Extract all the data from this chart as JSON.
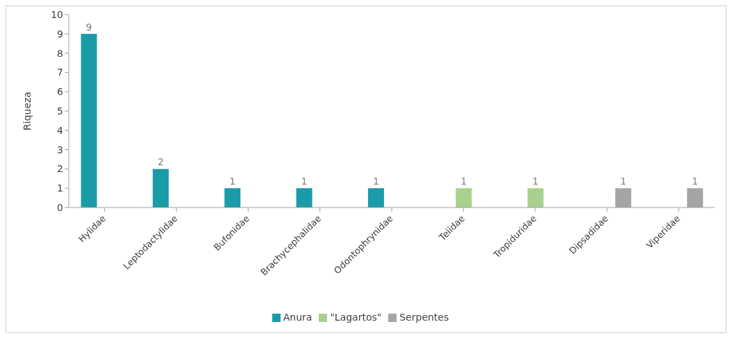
{
  "chart_data": {
    "type": "bar",
    "ylabel": "Riqueza",
    "categories": [
      "Hylidae",
      "Leptodactylidae",
      "Bufonidae",
      "Brachycephalidae",
      "Odontophrynidae",
      "Teiidae",
      "Tropiduridae",
      "Dipsadidae",
      "Viperidae"
    ],
    "series": [
      {
        "name": "Anura",
        "color": "#1b9ba8",
        "values": [
          9,
          2,
          1,
          1,
          1,
          null,
          null,
          null,
          null
        ]
      },
      {
        "name": "\"Lagartos\"",
        "color": "#a9d18e",
        "values": [
          null,
          null,
          null,
          null,
          null,
          1,
          1,
          null,
          null
        ]
      },
      {
        "name": "Serpentes",
        "color": "#a5a5a5",
        "values": [
          null,
          null,
          null,
          null,
          null,
          null,
          null,
          1,
          1
        ]
      }
    ],
    "ylim": [
      0,
      10
    ],
    "yticks": [
      0,
      1,
      2,
      3,
      4,
      5,
      6,
      7,
      8,
      9,
      10
    ],
    "data_labels": true,
    "legend": "bottom",
    "grid": false
  }
}
